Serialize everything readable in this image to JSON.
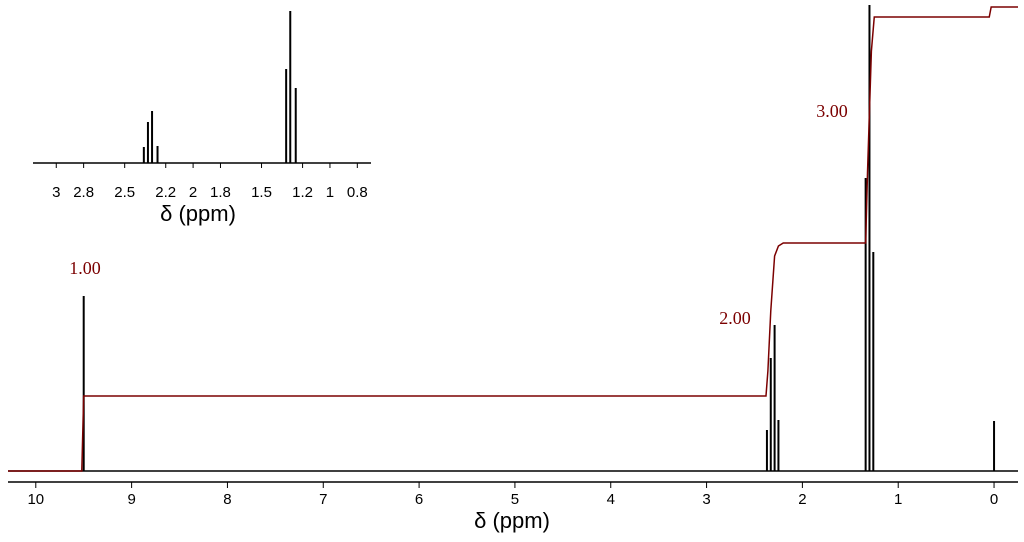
{
  "chart_data": [
    {
      "type": "spectrum",
      "xlabel": "δ (ppm)",
      "xlim": [
        10.29,
        -0.25
      ],
      "ylim": [
        0,
        470
      ],
      "xticks": [
        10,
        9,
        8,
        7,
        6,
        5,
        4,
        3,
        2,
        1,
        0
      ],
      "series": [
        {
          "name": "spectrum",
          "color": "#000000",
          "x": [
            9.5,
            2.37,
            2.33,
            2.29,
            2.25,
            1.34,
            1.3,
            1.26,
            0
          ],
          "values": [
            175,
            41,
            113,
            146,
            51,
            293,
            466,
            219,
            50
          ]
        },
        {
          "name": "integral",
          "color": "#7b0000",
          "x": [
            10.29,
            9.52,
            9.5,
            2.38,
            2.36,
            2.33,
            2.29,
            2.25,
            2.2,
            1.34,
            1.32,
            1.28,
            1.25,
            0.05,
            0.03,
            -0.25
          ],
          "values": [
            0,
            0,
            75,
            75,
            100,
            160,
            215,
            225,
            228,
            228,
            300,
            420,
            454,
            454,
            464,
            464
          ]
        }
      ],
      "annotations": [
        "1.00",
        "2.00",
        "3.00"
      ]
    },
    {
      "type": "spectrum",
      "xlabel": "δ (ppm)",
      "xlim": [
        3.17,
        0.7
      ],
      "ylim": [
        0,
        155
      ],
      "xticks": [
        3,
        2.8,
        2.5,
        2.2,
        2,
        1.8,
        1.5,
        1.2,
        1,
        0.8
      ],
      "series": [
        {
          "name": "spectrum",
          "color": "#000000",
          "x": [
            2.36,
            2.33,
            2.3,
            2.26,
            1.32,
            1.29,
            1.25
          ],
          "values": [
            16,
            41,
            52,
            17,
            94,
            152,
            75
          ]
        }
      ]
    }
  ]
}
